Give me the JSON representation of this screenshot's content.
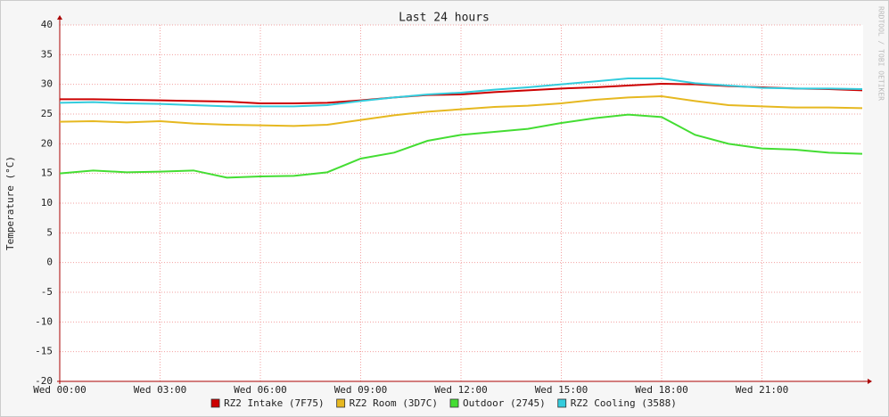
{
  "chart_data": {
    "type": "line",
    "title": "Last 24 hours",
    "y_label": "Temperature (°C)",
    "watermark": "RRDTOOL / TOBI OETIKER",
    "x": [
      0,
      1,
      2,
      3,
      4,
      5,
      6,
      7,
      8,
      9,
      10,
      11,
      12,
      13,
      14,
      15,
      16,
      17,
      18,
      19,
      20,
      21,
      22,
      23,
      24
    ],
    "series": [
      {
        "name": "RZ2 Intake (7F75)",
        "color": "#cc0000",
        "values": [
          27.5,
          27.5,
          27.4,
          27.3,
          27.2,
          27.1,
          26.8,
          26.8,
          26.9,
          27.3,
          27.8,
          28.2,
          28.3,
          28.7,
          29,
          29.3,
          29.5,
          29.8,
          30.1,
          30,
          29.7,
          29.5,
          29.3,
          29.2,
          29
        ]
      },
      {
        "name": "RZ2 Room (3D7C)",
        "color": "#e6b820",
        "values": [
          23.7,
          23.8,
          23.6,
          23.8,
          23.4,
          23.2,
          23.1,
          23,
          23.2,
          24,
          24.8,
          25.4,
          25.8,
          26.2,
          26.4,
          26.8,
          27.4,
          27.8,
          28,
          27.2,
          26.5,
          26.3,
          26.1,
          26.1,
          26
        ]
      },
      {
        "name": "Outdoor (2745)",
        "color": "#44dd33",
        "values": [
          15,
          15.5,
          15.2,
          15.3,
          15.5,
          14.3,
          14.5,
          14.6,
          15.2,
          17.5,
          18.5,
          20.5,
          21.5,
          22,
          22.5,
          23.5,
          24.3,
          24.9,
          24.5,
          21.5,
          20,
          19.2,
          19,
          18.5,
          18.3
        ]
      },
      {
        "name": "RZ2 Cooling (3588)",
        "color": "#33ccdd",
        "values": [
          26.9,
          27,
          26.8,
          26.7,
          26.5,
          26.3,
          26.3,
          26.3,
          26.5,
          27.2,
          27.8,
          28.3,
          28.6,
          29.1,
          29.5,
          30,
          30.5,
          31,
          31,
          30.2,
          29.8,
          29.4,
          29.3,
          29.3,
          29.2
        ]
      }
    ],
    "xlim": [
      0,
      24
    ],
    "xticks": [
      {
        "value": 0,
        "label": "Wed 00:00"
      },
      {
        "value": 3,
        "label": "Wed 03:00"
      },
      {
        "value": 6,
        "label": "Wed 06:00"
      },
      {
        "value": 9,
        "label": "Wed 09:00"
      },
      {
        "value": 12,
        "label": "Wed 12:00"
      },
      {
        "value": 15,
        "label": "Wed 15:00"
      },
      {
        "value": 18,
        "label": "Wed 18:00"
      },
      {
        "value": 21,
        "label": "Wed 21:00"
      }
    ],
    "ylim": [
      -20,
      40
    ],
    "yticks": [
      -20,
      -15,
      -10,
      -5,
      0,
      5,
      10,
      15,
      20,
      25,
      30,
      35,
      40
    ],
    "grid": true
  }
}
